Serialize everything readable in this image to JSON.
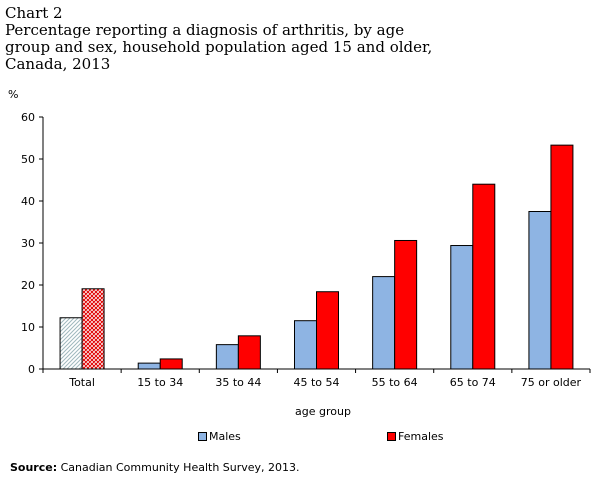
{
  "title": {
    "chart_number": "Chart 2",
    "lines": [
      "Percentage reporting a diagnosis of arthritis, by age",
      "group and sex, household population aged 15 and older,",
      "Canada, 2013"
    ]
  },
  "source": {
    "label": "Source:",
    "text": "Canadian Community Health Survey, 2013."
  },
  "colors": {
    "males": "#8eb4e3",
    "females": "#ff0000",
    "total_males_pattern": "#c6dde0",
    "total_females_pattern": "#ff0000"
  },
  "chart_data": {
    "type": "bar",
    "unit_label": "%",
    "xlabel": "age group",
    "ylim": [
      0,
      60
    ],
    "yticks": [
      "0",
      "10",
      "20",
      "30",
      "40",
      "50",
      "60"
    ],
    "categories": [
      "Total",
      "15 to 34",
      "35 to 44",
      "45 to 54",
      "55 to 64",
      "65 to 74",
      "75 or older"
    ],
    "series": [
      {
        "name": "Males",
        "values": [
          12.2,
          1.4,
          5.8,
          11.5,
          22.0,
          29.4,
          37.5
        ]
      },
      {
        "name": "Females",
        "values": [
          19.1,
          2.4,
          7.9,
          18.4,
          30.6,
          44.0,
          53.3
        ]
      }
    ],
    "legend_position": "bottom",
    "grid": false
  }
}
